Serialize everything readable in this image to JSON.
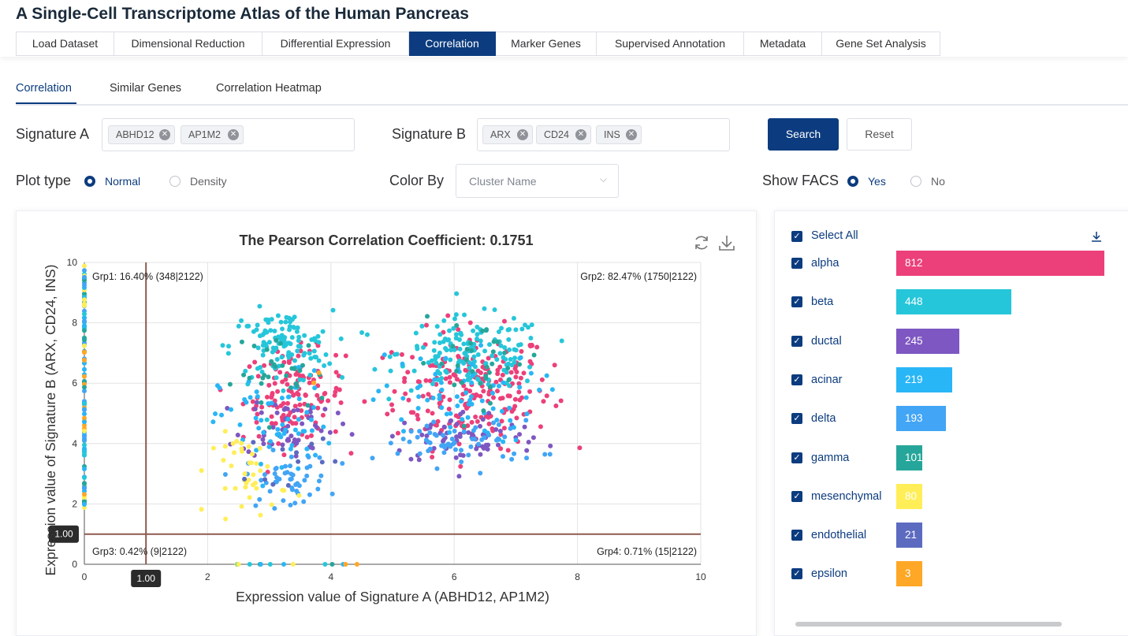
{
  "app": {
    "title": "A Single-Cell Transcriptome Atlas of the Human Pancreas"
  },
  "main_tabs": [
    {
      "label": "Load Dataset"
    },
    {
      "label": "Dimensional Reduction"
    },
    {
      "label": "Differential Expression"
    },
    {
      "label": "Correlation",
      "active": true
    },
    {
      "label": "Marker Genes"
    },
    {
      "label": "Supervised Annotation"
    },
    {
      "label": "Metadata"
    },
    {
      "label": "Gene Set Analysis"
    }
  ],
  "sub_tabs": [
    {
      "label": "Correlation",
      "active": true
    },
    {
      "label": "Similar Genes"
    },
    {
      "label": "Correlation Heatmap"
    }
  ],
  "controls": {
    "signature_a": {
      "label": "Signature A",
      "tags": [
        "ABHD12",
        "AP1M2"
      ]
    },
    "signature_b": {
      "label": "Signature B",
      "tags": [
        "ARX",
        "CD24",
        "INS"
      ]
    },
    "search_label": "Search",
    "reset_label": "Reset",
    "plot_type": {
      "label": "Plot type",
      "options": [
        "Normal",
        "Density"
      ],
      "selected": "Normal"
    },
    "color_by": {
      "label": "Color By",
      "value": "Cluster Name"
    },
    "show_facs": {
      "label": "Show FACS",
      "options": [
        "Yes",
        "No"
      ],
      "selected": "Yes"
    }
  },
  "legend": {
    "select_all_label": "Select All",
    "items": [
      {
        "name": "alpha",
        "count": 812,
        "color": "#ec407a",
        "checked": true
      },
      {
        "name": "beta",
        "count": 448,
        "color": "#26c6da",
        "checked": true
      },
      {
        "name": "ductal",
        "count": 245,
        "color": "#7e57c2",
        "checked": true
      },
      {
        "name": "acinar",
        "count": 219,
        "color": "#29b6f6",
        "checked": true
      },
      {
        "name": "delta",
        "count": 193,
        "color": "#42a5f5",
        "checked": true
      },
      {
        "name": "gamma",
        "count": 101,
        "color": "#26a69a",
        "checked": true
      },
      {
        "name": "mesenchymal",
        "count": 80,
        "color": "#ffee58",
        "checked": true
      },
      {
        "name": "endothelial",
        "count": 21,
        "color": "#5c6bc0",
        "checked": true
      },
      {
        "name": "epsilon",
        "count": 3,
        "color": "#ffa726",
        "checked": true
      }
    ]
  },
  "chart_data": {
    "type": "scatter",
    "title": "The Pearson Correlation Coefficient: 0.1751",
    "xlabel": "Expression value of Signature A (ABHD12, AP1M2)",
    "ylabel": "Expression value of Signature B (ARX, CD24, INS)",
    "xlim": [
      0,
      10
    ],
    "ylim": [
      0,
      10
    ],
    "xticks": [
      0,
      2,
      4,
      6,
      8,
      10
    ],
    "yticks": [
      0,
      2,
      4,
      6,
      8,
      10
    ],
    "grid": true,
    "threshold_x": 1.0,
    "threshold_y": 1.0,
    "threshold_x_label": "1.00",
    "threshold_y_label": "1.00",
    "quadrants": [
      {
        "label": "Grp1: 16.40% (348|2122)",
        "corner": "top-left"
      },
      {
        "label": "Grp2: 82.47% (1750|2122)",
        "corner": "top-right"
      },
      {
        "label": "Grp3: 0.42% (9|2122)",
        "corner": "bottom-left"
      },
      {
        "label": "Grp4: 0.71% (15|2122)",
        "corner": "bottom-right"
      }
    ],
    "clusters": [
      {
        "series": "alpha",
        "cx": 6.3,
        "cy": 5.8,
        "sx": 0.85,
        "sy": 1.3,
        "n": 220
      },
      {
        "series": "alpha",
        "cx": 3.4,
        "cy": 5.6,
        "sx": 0.55,
        "sy": 1.0,
        "n": 130
      },
      {
        "series": "beta",
        "cx": 6.3,
        "cy": 7.0,
        "sx": 0.8,
        "sy": 0.8,
        "n": 150
      },
      {
        "series": "beta",
        "cx": 3.2,
        "cy": 7.2,
        "sx": 0.55,
        "sy": 0.8,
        "n": 120
      },
      {
        "series": "ductal",
        "cx": 6.2,
        "cy": 4.2,
        "sx": 0.85,
        "sy": 0.6,
        "n": 70
      },
      {
        "series": "ductal",
        "cx": 3.3,
        "cy": 4.6,
        "sx": 0.5,
        "sy": 0.7,
        "n": 55
      },
      {
        "series": "acinar",
        "cx": 6.0,
        "cy": 5.5,
        "sx": 0.9,
        "sy": 1.0,
        "n": 70
      },
      {
        "series": "acinar",
        "cx": 3.1,
        "cy": 4.6,
        "sx": 0.6,
        "sy": 1.2,
        "n": 60
      },
      {
        "series": "delta",
        "cx": 6.1,
        "cy": 4.0,
        "sx": 0.85,
        "sy": 0.5,
        "n": 60
      },
      {
        "series": "delta",
        "cx": 3.3,
        "cy": 2.8,
        "sx": 0.45,
        "sy": 0.6,
        "n": 50
      },
      {
        "series": "gamma",
        "cx": 6.4,
        "cy": 6.7,
        "sx": 0.7,
        "sy": 0.9,
        "n": 35
      },
      {
        "series": "gamma",
        "cx": 3.2,
        "cy": 6.3,
        "sx": 0.5,
        "sy": 0.9,
        "n": 30
      },
      {
        "series": "mesenchymal",
        "cx": 2.7,
        "cy": 3.0,
        "sx": 0.4,
        "sy": 0.9,
        "n": 40
      },
      {
        "series": "endothelial",
        "cx": 3.4,
        "cy": 3.6,
        "sx": 0.5,
        "sy": 0.6,
        "n": 12
      },
      {
        "series": "epsilon",
        "cx": 3.8,
        "cy": 6.2,
        "sx": 0.3,
        "sy": 0.2,
        "n": 2
      }
    ],
    "axis_bands": [
      {
        "axis": "y-at-x0",
        "from": 1.8,
        "to": 9.9,
        "n": 120
      },
      {
        "axis": "x-at-y0",
        "from": 2.4,
        "to": 4.5,
        "n": 14
      }
    ]
  }
}
